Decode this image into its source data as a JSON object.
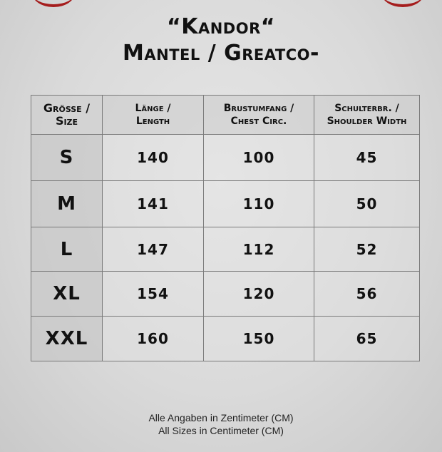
{
  "title_line1": "“Kandor“",
  "title_line2": "Mantel / Greatco-",
  "table": {
    "headers": [
      [
        "Grösse /",
        "Size"
      ],
      [
        "Länge /",
        "Length"
      ],
      [
        "Brustumfang /",
        "Chest Circ."
      ],
      [
        "Schulterbr. /",
        "Shoulder Width"
      ]
    ],
    "rows": [
      [
        "S",
        "140",
        "100",
        "45"
      ],
      [
        "M",
        "141",
        "110",
        "50"
      ],
      [
        "L",
        "147",
        "112",
        "52"
      ],
      [
        "XL",
        "154",
        "120",
        "56"
      ],
      [
        "XXL",
        "160",
        "150",
        "65"
      ]
    ]
  },
  "footer_line1": "Alle Angaben in Zentimeter (CM)",
  "footer_line2": "All Sizes in Centimeter (CM)",
  "colors": {
    "ornament": "#a51d1d",
    "background": "#dcdcdc"
  }
}
